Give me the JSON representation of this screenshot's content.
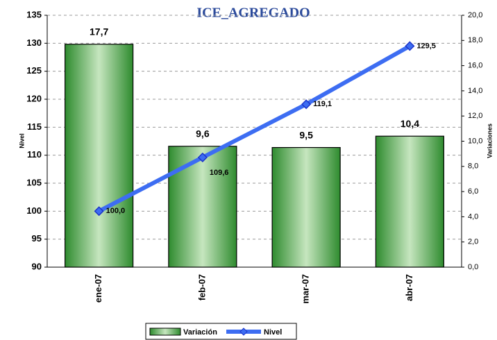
{
  "chart_data": {
    "type": "combo",
    "title": "ICE_AGREGADO",
    "ylabel": "Nivel",
    "y2label": "Variaciones",
    "categories": [
      "ene-07",
      "feb-07",
      "mar-07",
      "abr-07"
    ],
    "series": [
      {
        "name": "Variación",
        "type": "bar",
        "axis": "y2",
        "color": "#2e8b2e",
        "values": [
          17.7,
          9.6,
          9.5,
          10.4
        ],
        "value_labels": [
          "17,7",
          "9,6",
          "9,5",
          "10,4"
        ]
      },
      {
        "name": "Nivel",
        "type": "line",
        "axis": "y",
        "color": "#3d6df2",
        "marker_color": "#1c34c8",
        "values": [
          100.0,
          109.6,
          119.1,
          129.5
        ],
        "value_labels": [
          "100,0",
          "109,6",
          "119,1",
          "129,5"
        ]
      }
    ],
    "ylim": [
      90,
      135
    ],
    "yticks": [
      90,
      95,
      100,
      105,
      110,
      115,
      120,
      125,
      130,
      135
    ],
    "y2lim": [
      0,
      20
    ],
    "y2ticks": [
      {
        "value": 0,
        "label": "0,0"
      },
      {
        "value": 2,
        "label": "2,0"
      },
      {
        "value": 4,
        "label": "4,0"
      },
      {
        "value": 6,
        "label": "6,0"
      },
      {
        "value": 8,
        "label": "8,0"
      },
      {
        "value": 10,
        "label": "10,0"
      },
      {
        "value": 12,
        "label": "12,0"
      },
      {
        "value": 14,
        "label": "14,0"
      },
      {
        "value": 16,
        "label": "16,0"
      },
      {
        "value": 18,
        "label": "18,0"
      },
      {
        "value": 20,
        "label": "20,0"
      }
    ],
    "grid": true,
    "legend": "bottom"
  }
}
